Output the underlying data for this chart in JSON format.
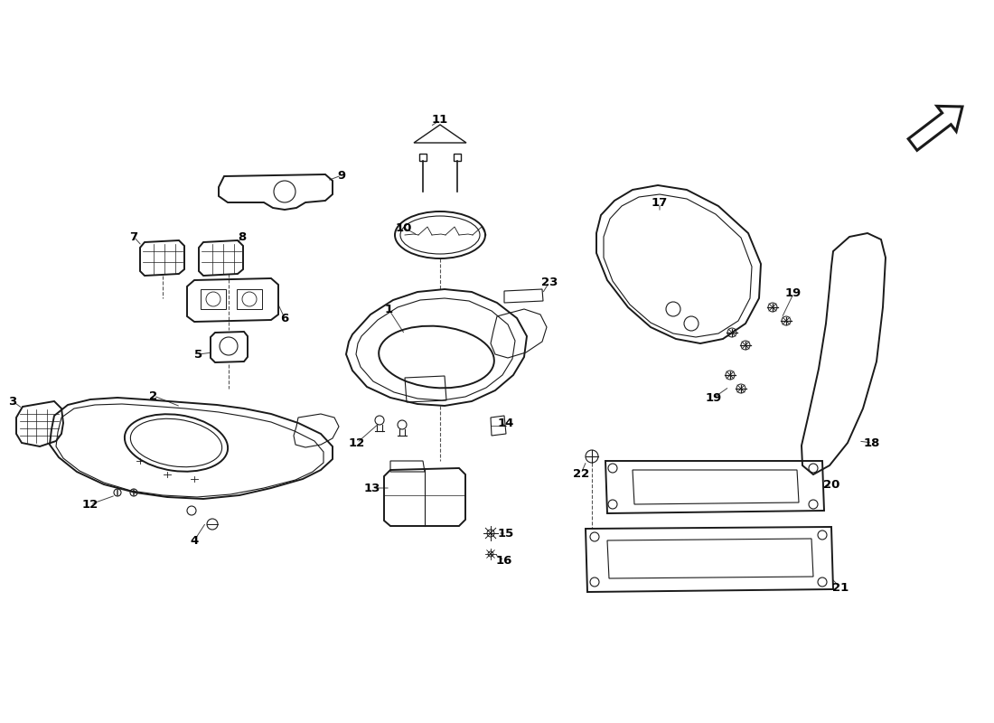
{
  "bg_color": "#ffffff",
  "line_color": "#1a1a1a",
  "lw_main": 1.4,
  "lw_thin": 0.8,
  "lw_thick": 2.0
}
